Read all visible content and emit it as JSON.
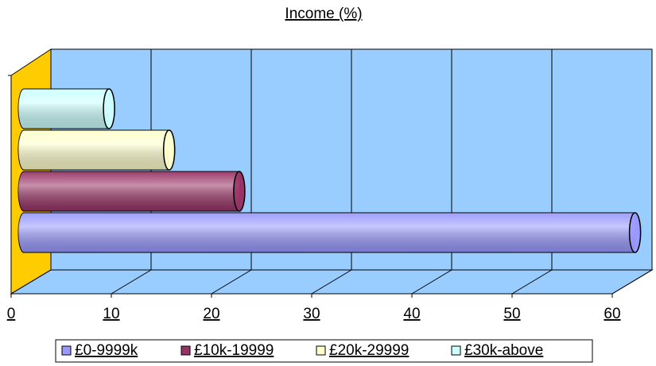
{
  "chart_data": {
    "type": "bar",
    "orientation": "horizontal",
    "style": "3d-cylinder",
    "title": "Income (%)",
    "series": [
      {
        "name": "£0-9999k",
        "color": "#9999ff",
        "values": [
          61
        ]
      },
      {
        "name": "£10k-19999",
        "color": "#993366",
        "values": [
          21.5
        ]
      },
      {
        "name": "£20k-29999",
        "color": "#ffffcc",
        "values": [
          14.5
        ]
      },
      {
        "name": "£30k-above",
        "color": "#ccffff",
        "values": [
          8.5
        ]
      }
    ],
    "xlim": [
      0,
      60
    ],
    "xticks": [
      0,
      10,
      20,
      30,
      40,
      50,
      60
    ],
    "grid": true,
    "legend": "bottom"
  }
}
